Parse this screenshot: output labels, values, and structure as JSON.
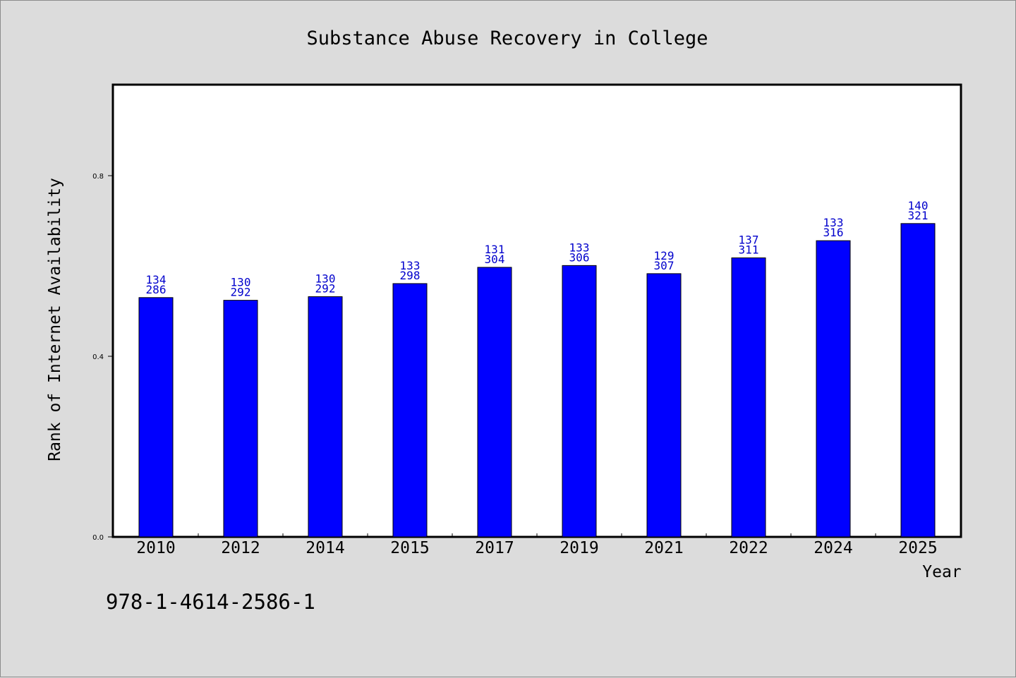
{
  "chart_data": {
    "type": "bar",
    "title": "Substance Abuse Recovery in College",
    "xlabel": "Year",
    "ylabel": "Rank of Internet Availability",
    "categories": [
      "2010",
      "2012",
      "2014",
      "2015",
      "2017",
      "2019",
      "2021",
      "2022",
      "2024",
      "2025"
    ],
    "values": [
      0.53,
      0.524,
      0.532,
      0.561,
      0.597,
      0.601,
      0.583,
      0.618,
      0.656,
      0.694
    ],
    "data_labels": [
      [
        "134",
        "286"
      ],
      [
        "130",
        "292"
      ],
      [
        "130",
        "292"
      ],
      [
        "133",
        "298"
      ],
      [
        "131",
        "304"
      ],
      [
        "133",
        "306"
      ],
      [
        "129",
        "307"
      ],
      [
        "137",
        "311"
      ],
      [
        "133",
        "316"
      ],
      [
        "140",
        "321"
      ]
    ],
    "ylim": [
      0.0,
      1.0
    ],
    "yticks": [
      "0.0",
      "0.4",
      "0.8"
    ],
    "ytick_values": [
      0.0,
      0.4,
      0.8
    ],
    "grid": false,
    "colors": {
      "bar": "#0000ff",
      "data_label": "#0000cc"
    }
  },
  "footer": {
    "isbn": "978-1-4614-2586-1"
  }
}
